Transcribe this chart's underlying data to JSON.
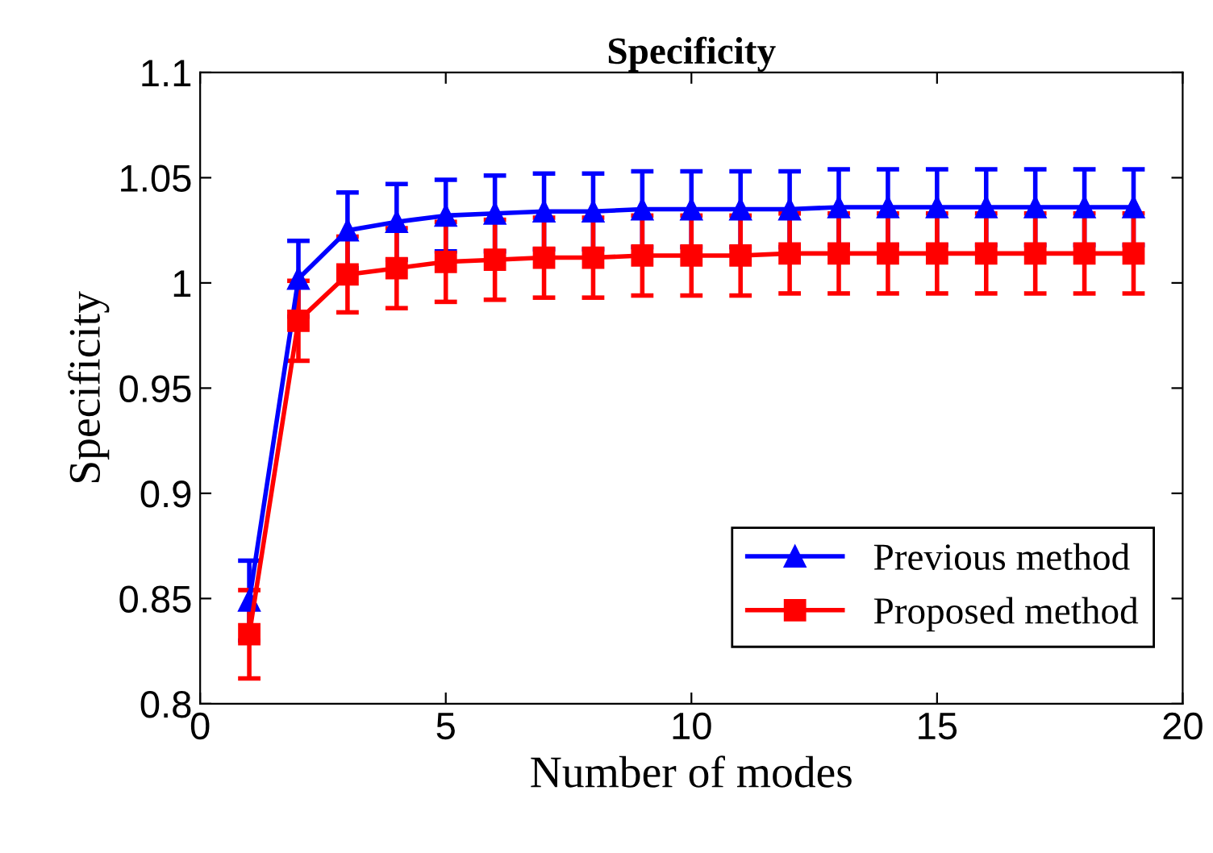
{
  "chart_data": {
    "type": "line",
    "title": "Specificity",
    "xlabel": "Number of modes",
    "ylabel": "Specificity",
    "x": [
      1,
      2,
      3,
      4,
      5,
      6,
      7,
      8,
      9,
      10,
      11,
      12,
      13,
      14,
      15,
      16,
      17,
      18,
      19
    ],
    "series": [
      {
        "name": "Previous method",
        "color": "#0000ff",
        "marker": "triangle",
        "values": [
          0.849,
          1.002,
          1.025,
          1.029,
          1.032,
          1.033,
          1.034,
          1.034,
          1.035,
          1.035,
          1.035,
          1.035,
          1.036,
          1.036,
          1.036,
          1.036,
          1.036,
          1.036,
          1.036
        ],
        "errors": [
          0.019,
          0.018,
          0.018,
          0.018,
          0.017,
          0.018,
          0.018,
          0.018,
          0.018,
          0.018,
          0.018,
          0.018,
          0.018,
          0.018,
          0.018,
          0.018,
          0.018,
          0.018,
          0.018
        ]
      },
      {
        "name": "Proposed method",
        "color": "#ff0000",
        "marker": "square",
        "values": [
          0.833,
          0.982,
          1.004,
          1.007,
          1.01,
          1.011,
          1.012,
          1.012,
          1.013,
          1.013,
          1.013,
          1.014,
          1.014,
          1.014,
          1.014,
          1.014,
          1.014,
          1.014,
          1.014
        ],
        "errors": [
          0.021,
          0.019,
          0.018,
          0.019,
          0.019,
          0.019,
          0.019,
          0.019,
          0.019,
          0.019,
          0.019,
          0.019,
          0.019,
          0.019,
          0.019,
          0.019,
          0.019,
          0.019,
          0.019
        ]
      }
    ],
    "xlim": [
      0,
      20
    ],
    "xticks": [
      0,
      5,
      10,
      15,
      20
    ],
    "ylim": [
      0.8,
      1.1
    ],
    "yticks": [
      0.8,
      0.85,
      0.9,
      0.95,
      1,
      1.05,
      1.1
    ],
    "grid": false,
    "legend": "bottom right",
    "line_style": "solid"
  }
}
